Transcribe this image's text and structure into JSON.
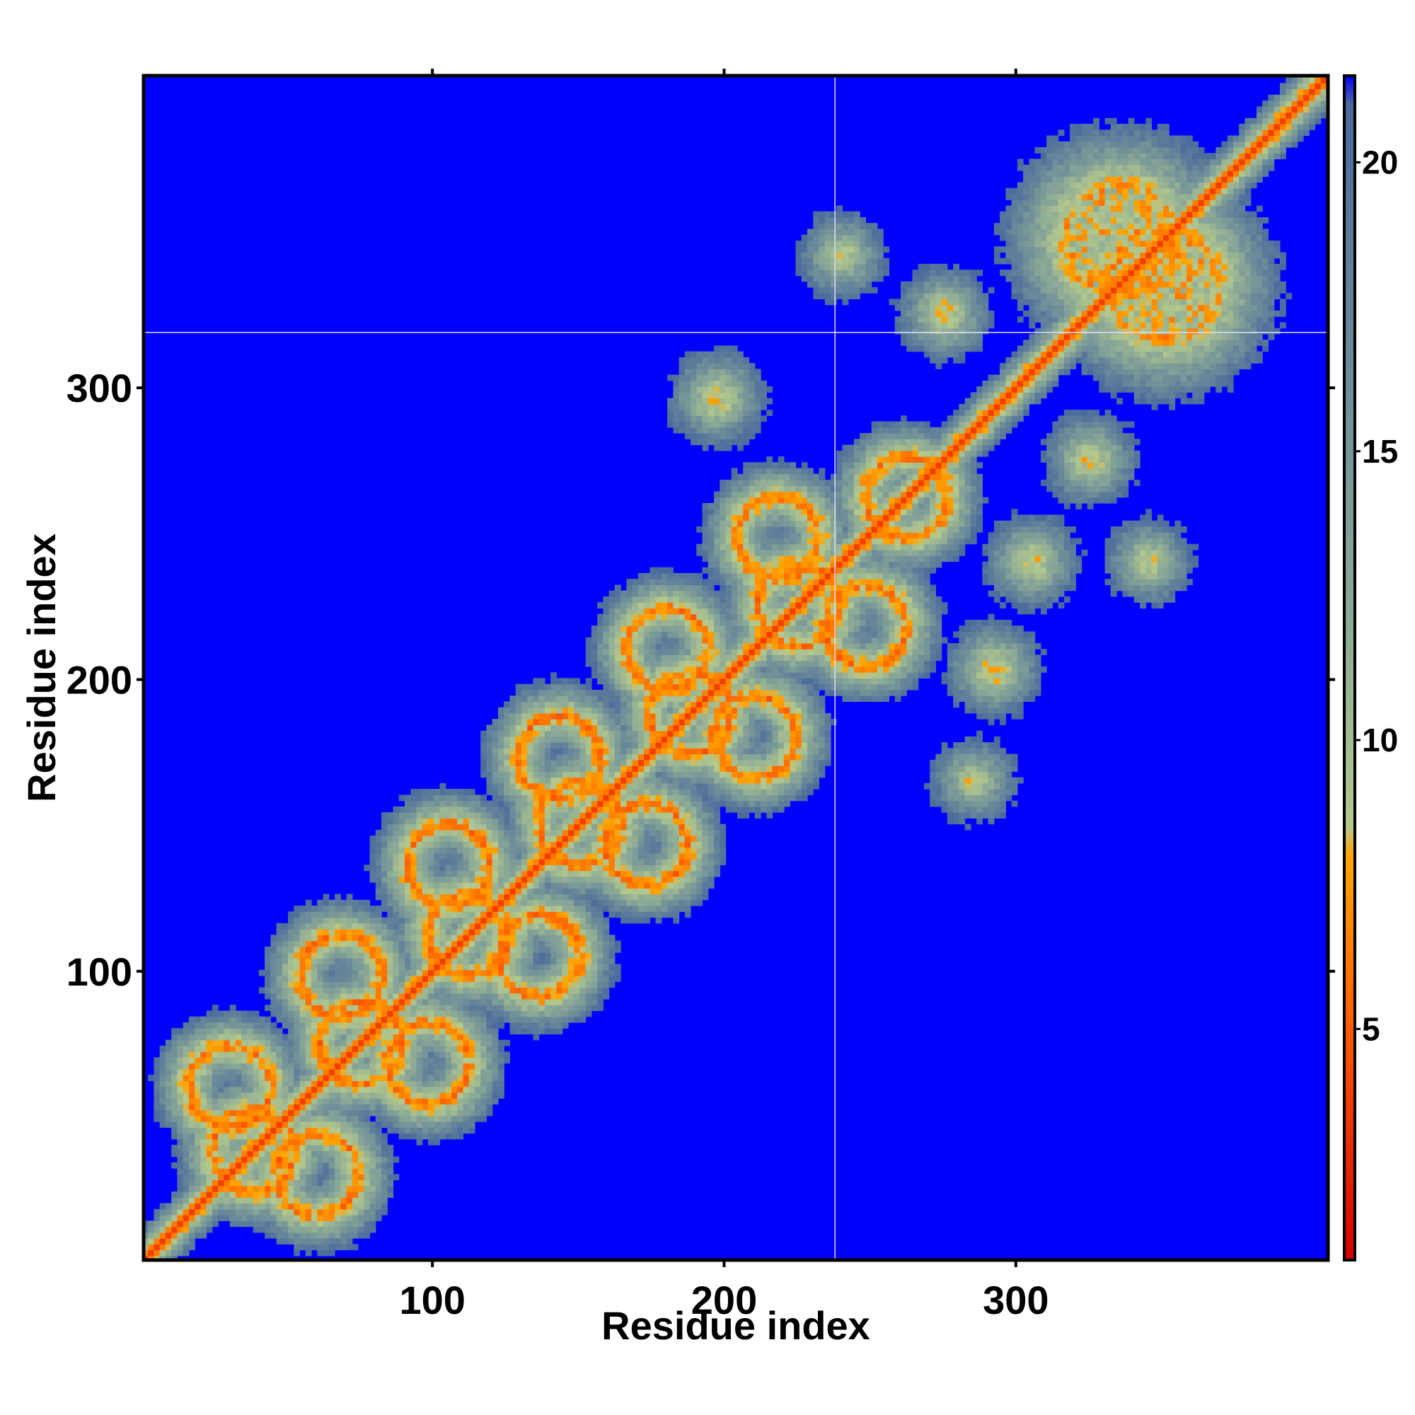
{
  "chart_data": {
    "type": "heatmap",
    "title": "",
    "xlabel": "Residue index",
    "ylabel": "Residue index",
    "n_residues": 407,
    "xlim": [
      1,
      407
    ],
    "ylim": [
      1,
      407
    ],
    "x_ticks": [
      "100",
      "200",
      "300"
    ],
    "y_ticks": [
      "100",
      "200",
      "300"
    ],
    "colorbar": {
      "ticks": [
        "5",
        "10",
        "15",
        "20"
      ],
      "range": [
        1,
        21.5
      ],
      "stops": [
        {
          "value": 1,
          "color": "#d40000"
        },
        {
          "value": 5,
          "color": "#ff5a00"
        },
        {
          "value": 8,
          "color": "#ffa500"
        },
        {
          "value": 8.5,
          "color": "#b4c88c"
        },
        {
          "value": 12,
          "color": "#8caa96"
        },
        {
          "value": 21,
          "color": "#4a6a9c"
        }
      ],
      "background_color": "#0000ff"
    },
    "reference_lines": {
      "x": 238,
      "y": 319,
      "color": "#e0e0ff"
    },
    "contact_features": [
      {
        "type": "diagonal",
        "from": 1,
        "to": 407,
        "distance": 3.8
      },
      {
        "type": "ring",
        "center": [
          38,
          38
        ],
        "radius": 14
      },
      {
        "type": "ring",
        "center": [
          75,
          75
        ],
        "radius": 14
      },
      {
        "type": "ring",
        "center": [
          112,
          112
        ],
        "radius": 14
      },
      {
        "type": "ring",
        "center": [
          150,
          150
        ],
        "radius": 14
      },
      {
        "type": "ring",
        "center": [
          188,
          188
        ],
        "radius": 14
      },
      {
        "type": "ring",
        "center": [
          225,
          225
        ],
        "radius": 14
      },
      {
        "type": "ring",
        "center": [
          262,
          262
        ],
        "radius": 14
      },
      {
        "type": "ring",
        "center": [
          30,
          60
        ],
        "radius": 14
      },
      {
        "type": "ring",
        "center": [
          68,
          98
        ],
        "radius": 14
      },
      {
        "type": "ring",
        "center": [
          105,
          136
        ],
        "radius": 14
      },
      {
        "type": "ring",
        "center": [
          143,
          173
        ],
        "radius": 14
      },
      {
        "type": "ring",
        "center": [
          180,
          210
        ],
        "radius": 14
      },
      {
        "type": "ring",
        "center": [
          218,
          248
        ],
        "radius": 14
      },
      {
        "type": "ring",
        "center": [
          60,
          30
        ],
        "radius": 14
      },
      {
        "type": "ring",
        "center": [
          98,
          68
        ],
        "radius": 14
      },
      {
        "type": "ring",
        "center": [
          136,
          105
        ],
        "radius": 14
      },
      {
        "type": "ring",
        "center": [
          173,
          143
        ],
        "radius": 14
      },
      {
        "type": "ring",
        "center": [
          210,
          180
        ],
        "radius": 14
      },
      {
        "type": "ring",
        "center": [
          248,
          218
        ],
        "radius": 14
      },
      {
        "type": "blob",
        "center": [
          335,
          350
        ],
        "radius": 30
      },
      {
        "type": "blob",
        "center": [
          350,
          335
        ],
        "radius": 30
      },
      {
        "type": "patch",
        "center": [
          292,
          203
        ],
        "radius": 10
      },
      {
        "type": "patch",
        "center": [
          305,
          240
        ],
        "radius": 9
      },
      {
        "type": "patch",
        "center": [
          345,
          240
        ],
        "radius": 6
      },
      {
        "type": "patch",
        "center": [
          285,
          165
        ],
        "radius": 5
      },
      {
        "type": "patch",
        "center": [
          197,
          296
        ],
        "radius": 10
      },
      {
        "type": "patch",
        "center": [
          240,
          345
        ],
        "radius": 6
      },
      {
        "type": "patch",
        "center": [
          275,
          325
        ],
        "radius": 9
      },
      {
        "type": "patch",
        "center": [
          325,
          275
        ],
        "radius": 9
      }
    ]
  }
}
